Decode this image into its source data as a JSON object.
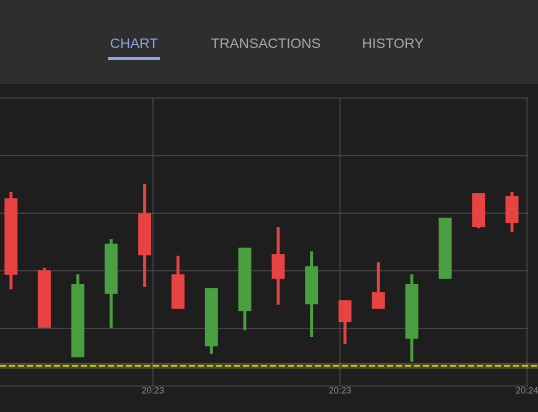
{
  "tabs": [
    {
      "label": "CHART",
      "active": true
    },
    {
      "label": "TRANSACTIONS",
      "active": false
    },
    {
      "label": "HISTORY",
      "active": false
    }
  ],
  "chart_data": {
    "type": "candlestick",
    "categories": [
      null,
      null,
      null,
      null,
      null,
      null,
      null,
      null,
      null,
      null,
      null,
      null,
      null,
      null,
      null,
      null
    ],
    "open": [
      32.6,
      20.1,
      5.0,
      16.0,
      30.0,
      19.4,
      6.9,
      13.0,
      22.9,
      14.2,
      14.9,
      16.3,
      8.2,
      18.6,
      33.5,
      33.0
    ],
    "high": [
      33.7,
      20.5,
      19.4,
      25.5,
      35.1,
      22.6,
      17.0,
      24.0,
      27.6,
      23.4,
      14.9,
      21.5,
      19.4,
      29.2,
      33.5,
      33.7
    ],
    "low": [
      16.8,
      10.1,
      5.0,
      10.1,
      17.2,
      13.4,
      5.6,
      9.7,
      14.1,
      8.5,
      7.3,
      13.4,
      4.2,
      18.6,
      27.4,
      26.7
    ],
    "close": [
      19.3,
      10.1,
      17.7,
      24.7,
      22.7,
      13.4,
      17.0,
      24.0,
      18.6,
      20.8,
      11.1,
      13.4,
      17.7,
      29.2,
      27.6,
      28.3
    ],
    "up_color": "#4aa040",
    "down_color": "#e84343",
    "ylim": [
      0,
      50
    ],
    "yticks": [
      0,
      10,
      20,
      30,
      40,
      50
    ],
    "grid": true,
    "xticks": [
      {
        "value": 4.25,
        "label": "20:23"
      },
      {
        "value": 9.85,
        "label": "20:23"
      },
      {
        "value": 15.45,
        "label": "20:24"
      }
    ],
    "reference_line": {
      "value": 3.5,
      "color": "#d8d820"
    }
  }
}
